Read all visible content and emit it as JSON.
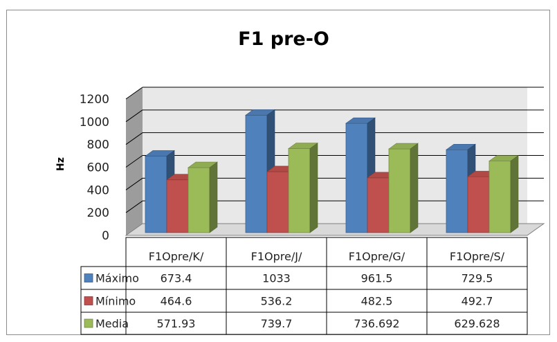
{
  "chart_data": {
    "type": "bar",
    "title": "F1 pre-O",
    "xlabel": "",
    "ylabel": "Hz",
    "ylim": [
      0,
      1200
    ],
    "yticks": [
      "0",
      "200",
      "400",
      "600",
      "800",
      "1000",
      "1200"
    ],
    "grid": true,
    "legend_placement": "data-table",
    "categories": [
      "F1Opre/K/",
      "F1Opre/J/",
      "F1Opre/G/",
      "F1Opre/S/"
    ],
    "series": [
      {
        "name": "Máximo",
        "color": "#4F81BD",
        "values": [
          673.4,
          1033,
          961.5,
          729.5
        ],
        "labels": [
          "673.4",
          "1033",
          "961.5",
          "729.5"
        ]
      },
      {
        "name": "Mínimo",
        "color": "#C0504D",
        "values": [
          464.6,
          536.2,
          482.5,
          492.7
        ],
        "labels": [
          "464.6",
          "536.2",
          "482.5",
          "492.7"
        ]
      },
      {
        "name": "Media",
        "color": "#9BBB59",
        "values": [
          571.93,
          739.7,
          736.692,
          629.628
        ],
        "labels": [
          "571.93",
          "739.7",
          "736.692",
          "629.628"
        ]
      }
    ]
  }
}
